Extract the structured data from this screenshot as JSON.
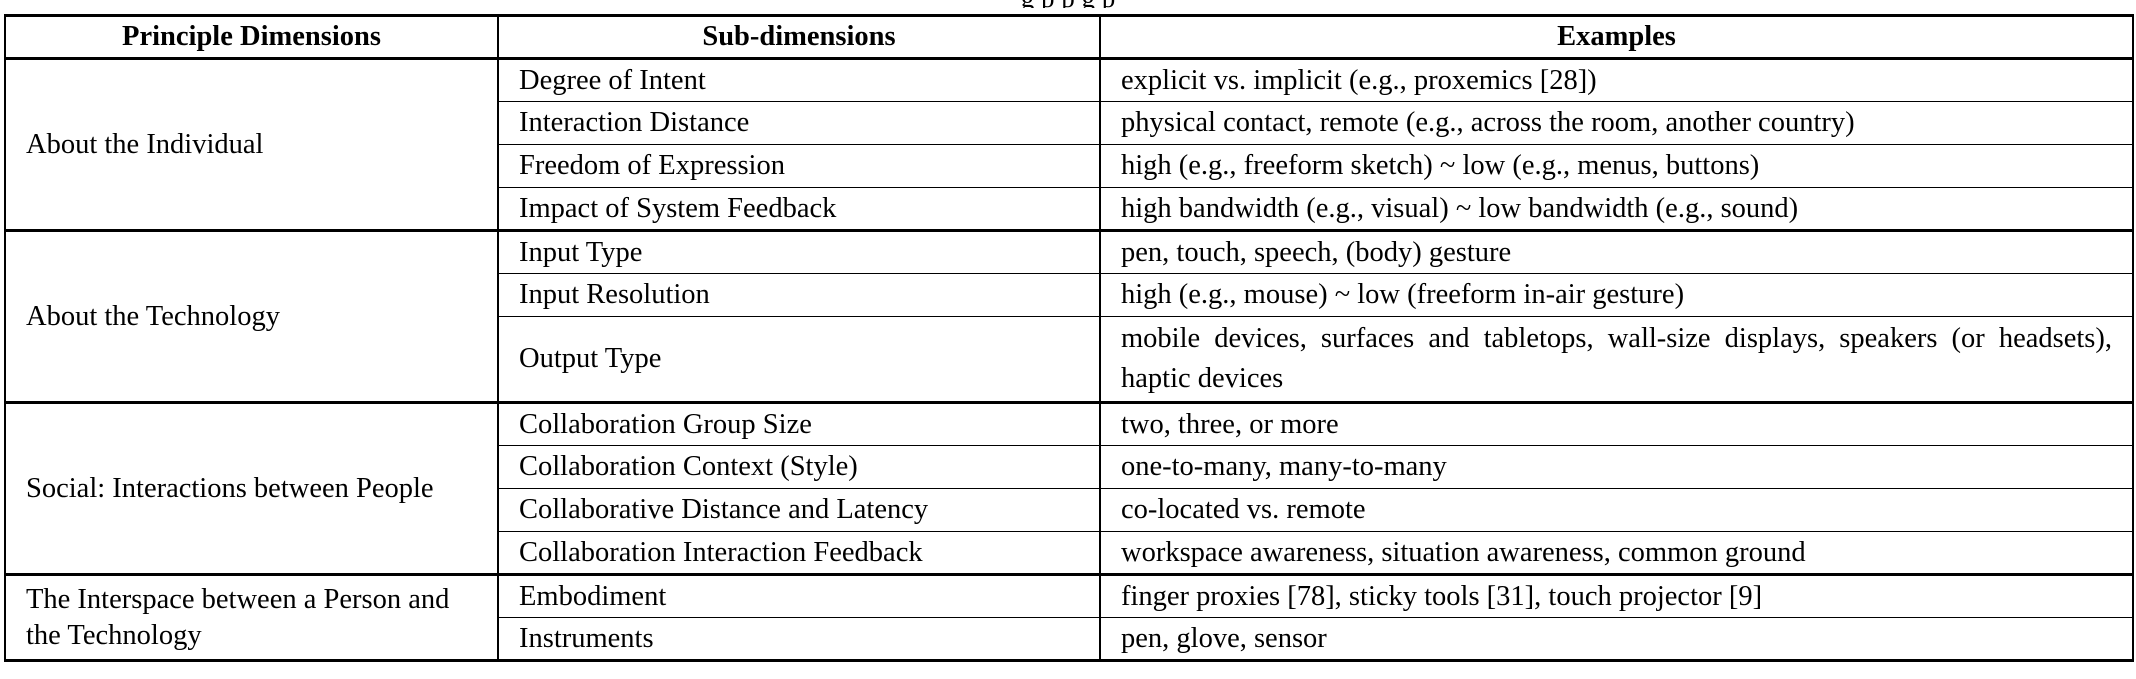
{
  "caption_fragment": "g                                                    p           p                                                                                                                      g                                p",
  "table": {
    "headers": [
      "Principle Dimensions",
      "Sub-dimensions",
      "Examples"
    ],
    "groups": [
      {
        "dimension": "About the Individual",
        "rows": [
          {
            "sub": "Degree of Intent",
            "example": "explicit vs. implicit (e.g., proxemics [28])"
          },
          {
            "sub": "Interaction Distance",
            "example": "physical contact, remote (e.g., across the room, another country)"
          },
          {
            "sub": "Freedom of Expression",
            "example": "high (e.g., freeform sketch) ~ low (e.g., menus, buttons)"
          },
          {
            "sub": "Impact of System Feedback",
            "example": "high bandwidth (e.g., visual) ~ low bandwidth (e.g., sound)"
          }
        ]
      },
      {
        "dimension": "About the Technology",
        "rows": [
          {
            "sub": "Input Type",
            "example": "pen, touch, speech, (body) gesture"
          },
          {
            "sub": "Input Resolution",
            "example": "high (e.g., mouse) ~ low (freeform in-air gesture)"
          },
          {
            "sub": "Output Type",
            "example": "mobile devices, surfaces and tabletops, wall-size displays, speakers (or headsets), haptic devices"
          }
        ]
      },
      {
        "dimension": "Social: Interactions between People",
        "rows": [
          {
            "sub": "Collaboration Group Size",
            "example": "two, three, or more"
          },
          {
            "sub": "Collaboration Context (Style)",
            "example": "one-to-many, many-to-many"
          },
          {
            "sub": "Collaborative Distance and Latency",
            "example": "co-located vs. remote"
          },
          {
            "sub": "Collaboration Interaction Feedback",
            "example": "workspace awareness, situation awareness, common ground"
          }
        ]
      },
      {
        "dimension": "The Interspace between a Person and the Technology",
        "rows": [
          {
            "sub": "Embodiment",
            "example": "finger proxies [78], sticky tools [31], touch projector [9]"
          },
          {
            "sub": "Instruments",
            "example": "pen, glove, sensor"
          }
        ]
      }
    ]
  }
}
